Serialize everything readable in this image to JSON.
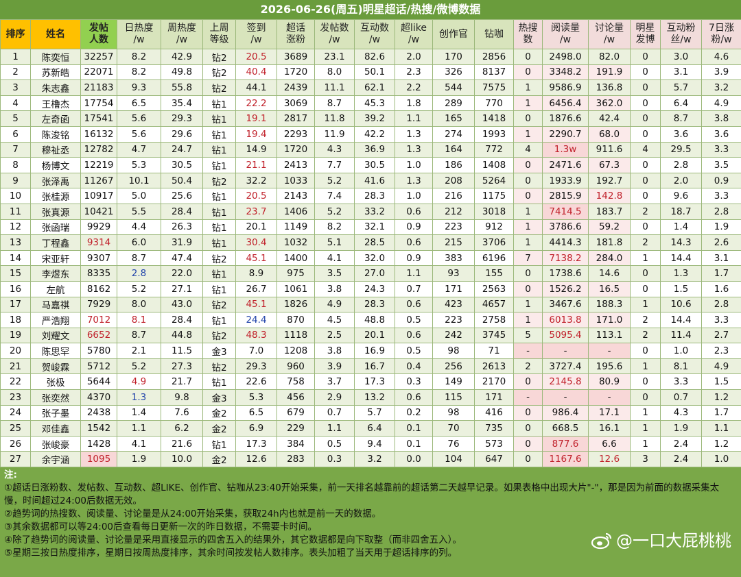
{
  "title": "2026-06-26(周五)明星超话/热搜/微博数据",
  "table": {
    "headers": [
      "排序",
      "姓名",
      "发帖\n人数",
      "日热度\n/w",
      "周热度\n/w",
      "上周\n等级",
      "签到\n/w",
      "超话\n涨粉",
      "发帖数\n/w",
      "互动数\n/w",
      "超like\n/w",
      "创作官",
      "钻咖",
      "热搜\n数",
      "阅读量\n/w",
      "讨论量\n/w",
      "明星\n发博",
      "互动粉\n丝/w",
      "7日涨\n粉/w"
    ],
    "rows": [
      [
        "1",
        "陈奕恒",
        "32257",
        "8.2",
        "42.9",
        "钻2",
        "20.5",
        "3689",
        "23.1",
        "82.6",
        "2.0",
        "170",
        "2856",
        "0",
        "2498.0",
        "82.0",
        "0",
        "3.0",
        "4.6"
      ],
      [
        "2",
        "苏新皓",
        "22071",
        "8.2",
        "49.8",
        "钻2",
        "40.4",
        "1720",
        "8.0",
        "50.1",
        "2.3",
        "326",
        "8137",
        "0",
        "3348.2",
        "191.9",
        "0",
        "3.1",
        "3.9"
      ],
      [
        "3",
        "朱志鑫",
        "21183",
        "9.3",
        "55.8",
        "钻2",
        "44.1",
        "2439",
        "11.1",
        "62.1",
        "2.2",
        "544",
        "7575",
        "1",
        "9586.9",
        "136.8",
        "0",
        "5.7",
        "3.2"
      ],
      [
        "4",
        "王橹杰",
        "17754",
        "6.5",
        "35.4",
        "钻1",
        "22.2",
        "3069",
        "8.7",
        "45.3",
        "1.8",
        "289",
        "770",
        "1",
        "6456.4",
        "362.0",
        "0",
        "6.4",
        "4.9"
      ],
      [
        "5",
        "左奇函",
        "17541",
        "5.6",
        "29.3",
        "钻1",
        "19.1",
        "2817",
        "11.8",
        "39.2",
        "1.1",
        "165",
        "1418",
        "0",
        "1876.6",
        "42.4",
        "0",
        "8.7",
        "3.8"
      ],
      [
        "6",
        "陈浚铭",
        "16132",
        "5.6",
        "29.6",
        "钻1",
        "19.4",
        "2293",
        "11.9",
        "42.2",
        "1.3",
        "274",
        "1993",
        "1",
        "2290.7",
        "68.0",
        "0",
        "3.6",
        "3.6"
      ],
      [
        "7",
        "穆祉丞",
        "12782",
        "4.7",
        "24.7",
        "钻1",
        "14.9",
        "1720",
        "4.3",
        "36.9",
        "1.3",
        "164",
        "772",
        "4",
        "1.3w",
        "911.6",
        "4",
        "29.5",
        "3.3"
      ],
      [
        "8",
        "杨博文",
        "12219",
        "5.3",
        "30.5",
        "钻1",
        "21.1",
        "2413",
        "7.7",
        "30.5",
        "1.0",
        "186",
        "1408",
        "0",
        "2471.6",
        "67.3",
        "0",
        "2.8",
        "3.5"
      ],
      [
        "9",
        "张泽禹",
        "11267",
        "10.1",
        "50.4",
        "钻2",
        "32.2",
        "1033",
        "5.2",
        "41.6",
        "1.3",
        "208",
        "5264",
        "0",
        "1933.9",
        "192.7",
        "0",
        "2.0",
        "0.9"
      ],
      [
        "10",
        "张桂源",
        "10917",
        "5.0",
        "25.6",
        "钻1",
        "20.5",
        "2143",
        "7.4",
        "28.3",
        "1.0",
        "216",
        "1175",
        "0",
        "2815.9",
        "142.8",
        "0",
        "9.6",
        "3.3"
      ],
      [
        "11",
        "张真源",
        "10421",
        "5.5",
        "28.4",
        "钻1",
        "23.7",
        "1406",
        "5.2",
        "33.2",
        "0.6",
        "212",
        "3018",
        "1",
        "7414.5",
        "183.7",
        "2",
        "18.7",
        "2.8"
      ],
      [
        "12",
        "张函瑞",
        "9929",
        "4.4",
        "26.3",
        "钻1",
        "20.1",
        "1149",
        "8.2",
        "32.1",
        "0.9",
        "223",
        "912",
        "1",
        "3786.6",
        "59.2",
        "0",
        "1.4",
        "1.9"
      ],
      [
        "13",
        "丁程鑫",
        "9314",
        "6.0",
        "31.9",
        "钻1",
        "30.4",
        "1032",
        "5.1",
        "28.5",
        "0.6",
        "215",
        "3706",
        "1",
        "4414.3",
        "181.8",
        "2",
        "14.3",
        "2.6"
      ],
      [
        "14",
        "宋亚轩",
        "9307",
        "8.7",
        "47.4",
        "钻2",
        "45.1",
        "1400",
        "4.1",
        "32.0",
        "0.9",
        "383",
        "6196",
        "7",
        "7138.2",
        "284.0",
        "1",
        "14.4",
        "3.1"
      ],
      [
        "15",
        "李煜东",
        "8335",
        "2.8",
        "22.0",
        "钻1",
        "8.9",
        "975",
        "3.5",
        "27.0",
        "1.1",
        "93",
        "155",
        "0",
        "1738.6",
        "14.6",
        "0",
        "1.3",
        "1.7"
      ],
      [
        "16",
        "左航",
        "8162",
        "5.2",
        "27.1",
        "钻1",
        "26.7",
        "1061",
        "3.8",
        "24.3",
        "0.7",
        "171",
        "2563",
        "0",
        "1526.2",
        "16.5",
        "0",
        "1.5",
        "1.6"
      ],
      [
        "17",
        "马嘉祺",
        "7929",
        "8.0",
        "43.0",
        "钻2",
        "45.1",
        "1826",
        "4.9",
        "28.3",
        "0.6",
        "423",
        "4657",
        "1",
        "3467.6",
        "188.3",
        "1",
        "10.6",
        "2.8"
      ],
      [
        "18",
        "严浩翔",
        "7012",
        "8.1",
        "28.4",
        "钻1",
        "24.4",
        "870",
        "4.5",
        "48.8",
        "0.5",
        "223",
        "2758",
        "1",
        "6013.8",
        "171.0",
        "2",
        "14.4",
        "3.3"
      ],
      [
        "19",
        "刘耀文",
        "6652",
        "8.7",
        "44.8",
        "钻2",
        "48.3",
        "1118",
        "2.5",
        "20.1",
        "0.6",
        "242",
        "3745",
        "5",
        "5095.4",
        "113.1",
        "2",
        "11.4",
        "2.7"
      ],
      [
        "20",
        "陈思罕",
        "5780",
        "2.1",
        "11.5",
        "金3",
        "7.0",
        "1208",
        "3.8",
        "16.9",
        "0.5",
        "98",
        "71",
        "-",
        "-",
        "-",
        "0",
        "1.0",
        "2.3"
      ],
      [
        "21",
        "贺峻霖",
        "5712",
        "5.2",
        "27.3",
        "钻2",
        "29.3",
        "960",
        "3.9",
        "16.7",
        "0.4",
        "256",
        "2613",
        "2",
        "3727.4",
        "195.6",
        "1",
        "8.1",
        "4.9"
      ],
      [
        "22",
        "张极",
        "5644",
        "4.9",
        "21.7",
        "钻1",
        "22.6",
        "758",
        "3.7",
        "17.3",
        "0.3",
        "149",
        "2170",
        "0",
        "2145.8",
        "80.9",
        "0",
        "3.3",
        "1.5"
      ],
      [
        "23",
        "张奕然",
        "4370",
        "1.3",
        "9.8",
        "金3",
        "5.3",
        "456",
        "2.9",
        "13.2",
        "0.6",
        "115",
        "171",
        "-",
        "-",
        "-",
        "0",
        "0.7",
        "1.2"
      ],
      [
        "24",
        "张子墨",
        "2438",
        "1.4",
        "7.6",
        "金2",
        "6.5",
        "679",
        "0.7",
        "5.7",
        "0.2",
        "98",
        "416",
        "0",
        "986.4",
        "17.1",
        "1",
        "4.3",
        "1.7"
      ],
      [
        "25",
        "邓佳鑫",
        "1542",
        "1.1",
        "6.2",
        "金2",
        "6.9",
        "229",
        "1.1",
        "6.4",
        "0.1",
        "70",
        "735",
        "0",
        "668.5",
        "16.1",
        "1",
        "1.9",
        "1.1"
      ],
      [
        "26",
        "张峻豪",
        "1428",
        "4.1",
        "21.6",
        "钻1",
        "17.3",
        "384",
        "0.5",
        "9.4",
        "0.1",
        "76",
        "573",
        "0",
        "877.6",
        "6.6",
        "1",
        "2.4",
        "1.2"
      ],
      [
        "27",
        "余宇涵",
        "1095",
        "1.9",
        "10.0",
        "金2",
        "12.6",
        "283",
        "0.3",
        "3.2",
        "0.0",
        "104",
        "647",
        "0",
        "1167.6",
        "12.6",
        "3",
        "2.4",
        "1.0"
      ]
    ]
  },
  "notes": {
    "label": "注:",
    "items": [
      "①超话日涨粉数、发帖数、互动数、超LIKE、创作官、钻咖从23:40开始采集，前一天排名越靠前的超话第二天越早记录。如果表格中出现大片\"-\"，那是因为前面的数据采集太慢，时间超过24:00后数据无效。",
      "②趋势词的热搜数、阅读量、讨论量是从24:00开始采集，获取24h内也就是前一天的数据。",
      "③其余数据都可以等24:00后查看每日更新一次的昨日数据，不需要卡时间。",
      "④除了趋势词的阅读量、讨论量是采用直接显示的四舍五入的结果外，其它数据都是向下取整（而非四舍五入）。",
      "⑤星期三按日热度排序，星期日按周热度排序，其余时间按发帖人数排序。表头加粗了当天用于超话排序的列。"
    ]
  },
  "watermark": "@一口大屁桃桃"
}
